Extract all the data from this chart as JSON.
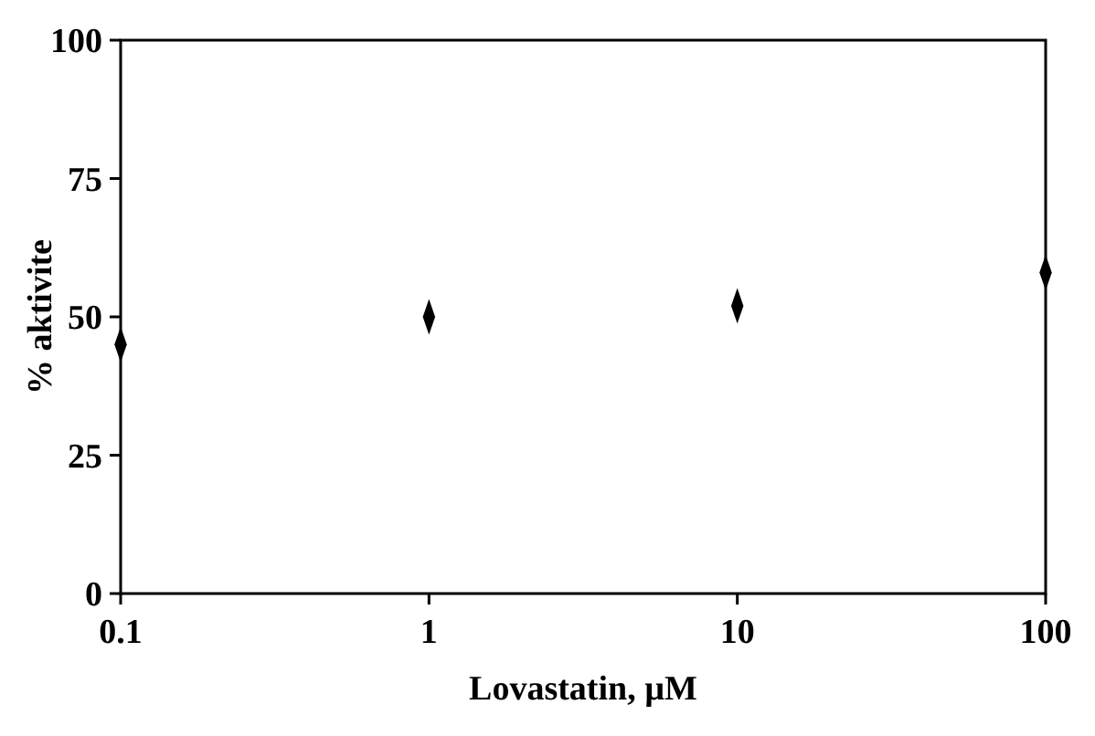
{
  "chart_data": {
    "type": "scatter",
    "xlabel": "Lovastatin, µM",
    "ylabel": "% aktivite",
    "x": [
      0.1,
      1,
      10,
      100
    ],
    "values": [
      45,
      50,
      52,
      58
    ],
    "color": "#000000",
    "marker": "diamond",
    "log": "x",
    "xlim": [
      0.1,
      100
    ],
    "xticks": [
      0.1,
      1,
      10,
      100
    ],
    "ylim": [
      0,
      100
    ],
    "yticks": [
      0,
      25,
      50,
      75,
      100
    ],
    "grid": false
  }
}
